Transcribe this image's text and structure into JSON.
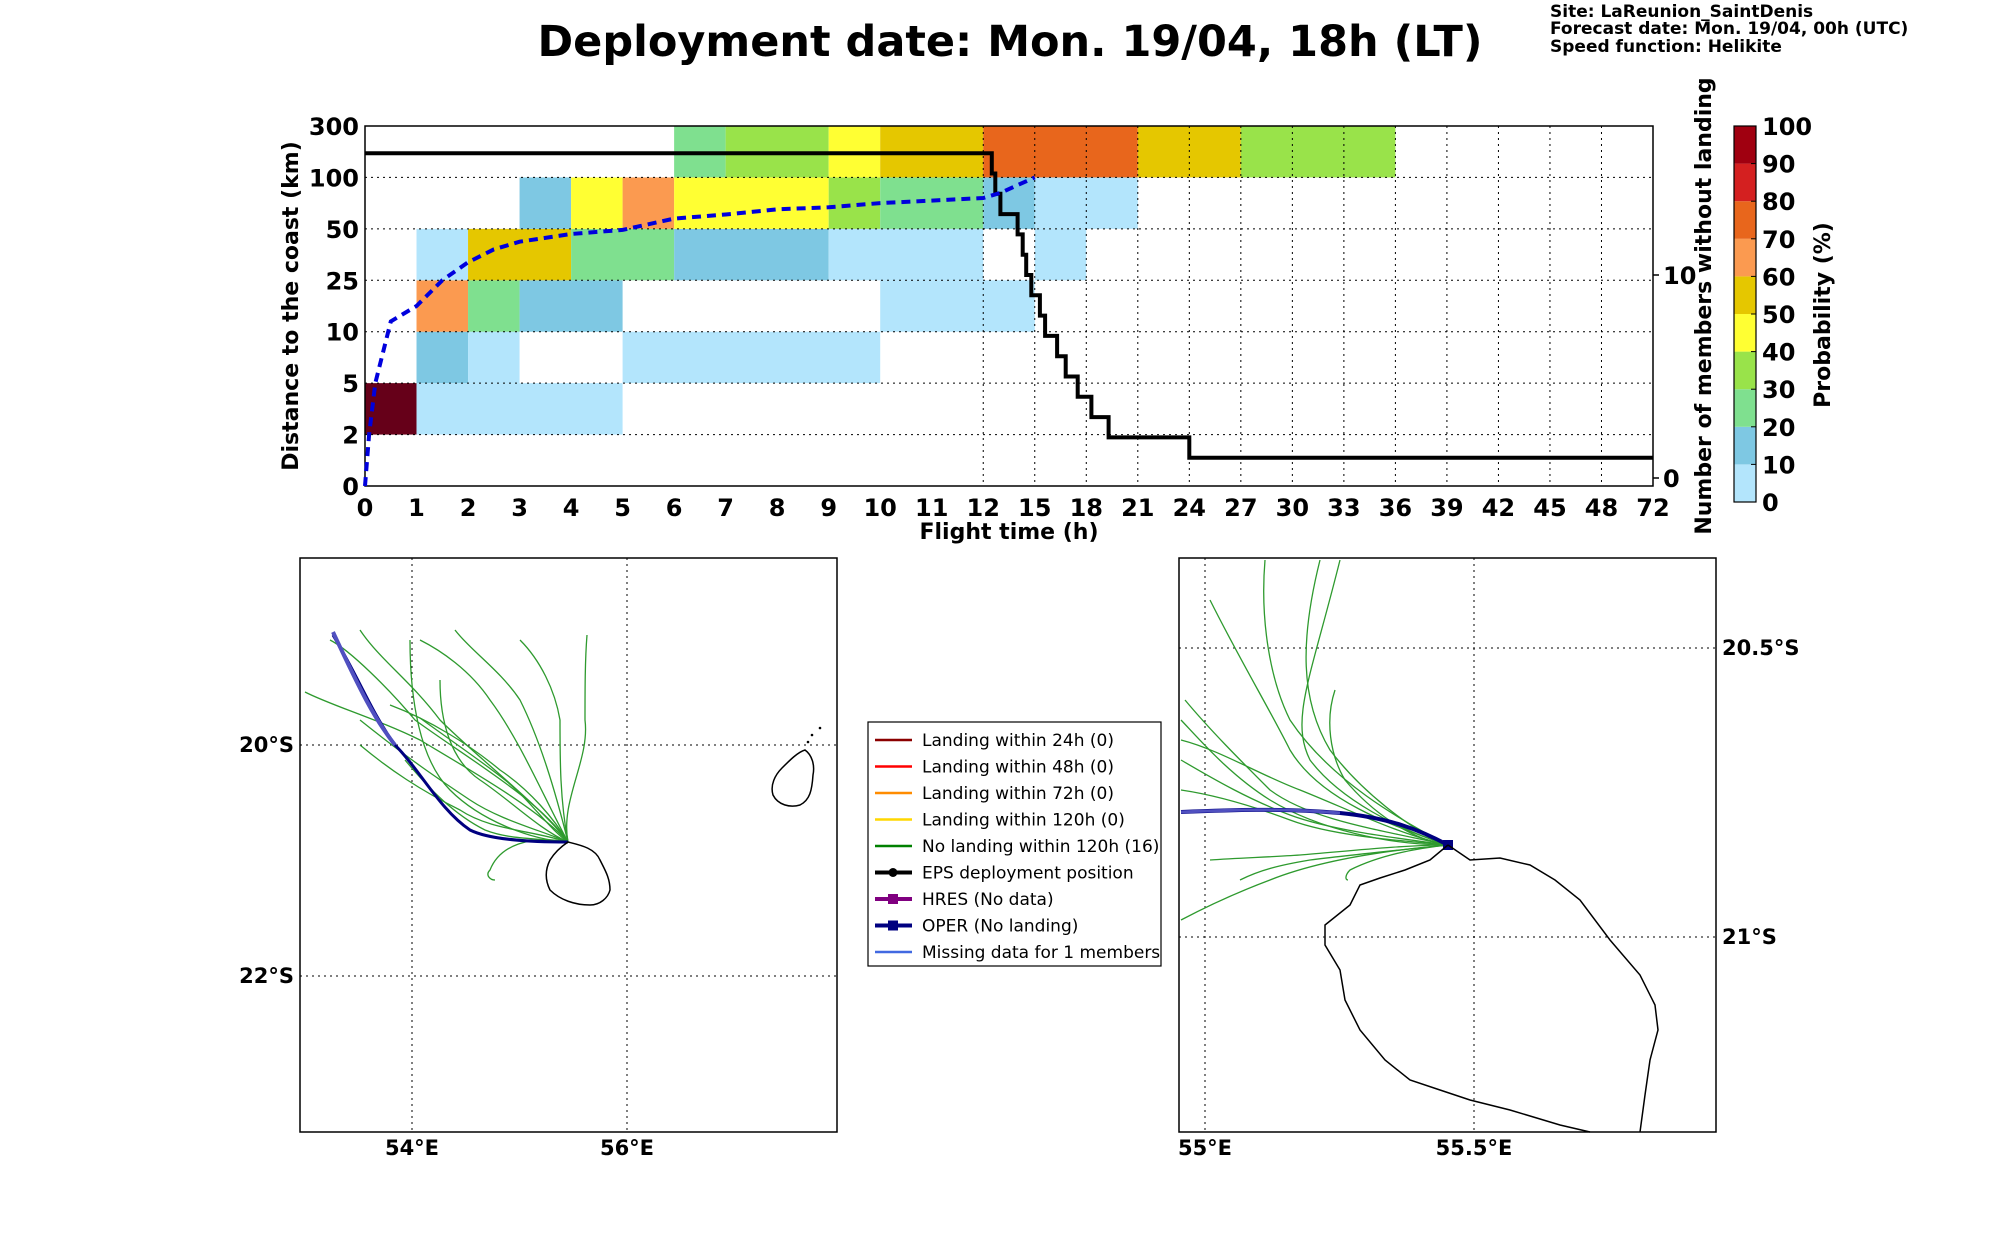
{
  "header": {
    "title": "Deployment date: Mon. 19/04, 18h (LT)",
    "info": [
      "Site: LaReunion_SaintDenis",
      "Forecast date: Mon. 19/04, 00h (UTC)",
      "Speed function: Helikite"
    ]
  },
  "chart_data": [
    {
      "type": "heatmap",
      "xlabel": "Flight time (h)",
      "ylabel": "Distance to the coast (km)",
      "y2label": "Number of members without landing",
      "x_ticks": [
        "0",
        "1",
        "2",
        "3",
        "4",
        "5",
        "6",
        "7",
        "8",
        "9",
        "10",
        "11",
        "12",
        "15",
        "18",
        "21",
        "24",
        "27",
        "30",
        "33",
        "36",
        "39",
        "42",
        "45",
        "48",
        "72"
      ],
      "y_ticks": [
        "0",
        "2",
        "5",
        "10",
        "25",
        "50",
        "100",
        "300"
      ],
      "y2_ticks": [
        "0",
        "10"
      ],
      "colorbar": {
        "label": "Probability (%)",
        "ticks": [
          "0",
          "10",
          "20",
          "30",
          "40",
          "50",
          "60",
          "70",
          "80",
          "90",
          "100"
        ],
        "colors": [
          "#b3e5fc",
          "#7ec8e3",
          "#7fe08f",
          "#99e34a",
          "#ffff33",
          "#e5c700",
          "#fb9a50",
          "#e8661c",
          "#d42020",
          "#a00010"
        ]
      },
      "cells": [
        {
          "x": 0,
          "w": 1,
          "y": 1,
          "h": 1,
          "c": "#660019"
        },
        {
          "x": 1,
          "w": 4,
          "y": 1,
          "h": 1,
          "c": "#b3e5fc"
        },
        {
          "x": 1,
          "w": 1,
          "y": 2,
          "h": 1,
          "c": "#7ec8e3"
        },
        {
          "x": 2,
          "w": 1,
          "y": 2,
          "h": 1,
          "c": "#b3e5fc"
        },
        {
          "x": 5,
          "w": 5,
          "y": 2,
          "h": 1,
          "c": "#b3e5fc"
        },
        {
          "x": 1,
          "w": 1,
          "y": 3,
          "h": 1,
          "c": "#fb9a50"
        },
        {
          "x": 2,
          "w": 1,
          "y": 3,
          "h": 1,
          "c": "#7fe08f"
        },
        {
          "x": 3,
          "w": 2,
          "y": 3,
          "h": 1,
          "c": "#7ec8e3"
        },
        {
          "x": 10,
          "w": 3,
          "y": 3,
          "h": 1,
          "c": "#b3e5fc"
        },
        {
          "x": 1,
          "w": 1,
          "y": 4,
          "h": 1,
          "c": "#b3e5fc"
        },
        {
          "x": 2,
          "w": 2,
          "y": 4,
          "h": 1,
          "c": "#e5c700"
        },
        {
          "x": 4,
          "w": 2,
          "y": 4,
          "h": 1,
          "c": "#7fe08f"
        },
        {
          "x": 6,
          "w": 3,
          "y": 4,
          "h": 1,
          "c": "#7ec8e3"
        },
        {
          "x": 9,
          "w": 3,
          "y": 4,
          "h": 1,
          "c": "#b3e5fc"
        },
        {
          "x": 13,
          "w": 1,
          "y": 4,
          "h": 1,
          "c": "#b3e5fc"
        },
        {
          "x": 3,
          "w": 1,
          "y": 5,
          "h": 1,
          "c": "#7ec8e3"
        },
        {
          "x": 4,
          "w": 1,
          "y": 5,
          "h": 1,
          "c": "#ffff33"
        },
        {
          "x": 5,
          "w": 1,
          "y": 5,
          "h": 1,
          "c": "#fb9a50"
        },
        {
          "x": 6,
          "w": 3,
          "y": 5,
          "h": 1,
          "c": "#ffff33"
        },
        {
          "x": 9,
          "w": 1,
          "y": 5,
          "h": 1,
          "c": "#99e34a"
        },
        {
          "x": 10,
          "w": 2,
          "y": 5,
          "h": 1,
          "c": "#7fe08f"
        },
        {
          "x": 12,
          "w": 1,
          "y": 5,
          "h": 1,
          "c": "#7ec8e3"
        },
        {
          "x": 13,
          "w": 2,
          "y": 5,
          "h": 1,
          "c": "#b3e5fc"
        },
        {
          "x": 6,
          "w": 1,
          "y": 6,
          "h": 1,
          "c": "#7fe08f"
        },
        {
          "x": 7,
          "w": 2,
          "y": 6,
          "h": 1,
          "c": "#99e34a"
        },
        {
          "x": 9,
          "w": 1,
          "y": 6,
          "h": 1,
          "c": "#ffff33"
        },
        {
          "x": 10,
          "w": 2,
          "y": 6,
          "h": 1,
          "c": "#e5c700"
        },
        {
          "x": 12,
          "w": 3,
          "y": 6,
          "h": 1,
          "c": "#e8661c"
        },
        {
          "x": 15,
          "w": 2,
          "y": 6,
          "h": 1,
          "c": "#e5c700"
        },
        {
          "x": 17,
          "w": 3,
          "y": 6,
          "h": 1,
          "c": "#99e34a"
        }
      ],
      "members_without_landing": [
        [
          0,
          16
        ],
        [
          12.5,
          16
        ],
        [
          12.5,
          15
        ],
        [
          12.7,
          15
        ],
        [
          12.7,
          14
        ],
        [
          13,
          14
        ],
        [
          13,
          13
        ],
        [
          14,
          13
        ],
        [
          14,
          12
        ],
        [
          14.3,
          12
        ],
        [
          14.3,
          11
        ],
        [
          14.5,
          11
        ],
        [
          14.5,
          10
        ],
        [
          14.8,
          10
        ],
        [
          14.8,
          9
        ],
        [
          15.3,
          9
        ],
        [
          15.3,
          8
        ],
        [
          15.6,
          8
        ],
        [
          15.6,
          7
        ],
        [
          16.3,
          7
        ],
        [
          16.3,
          6
        ],
        [
          16.8,
          6
        ],
        [
          16.8,
          5
        ],
        [
          17.5,
          5
        ],
        [
          17.5,
          4
        ],
        [
          18.3,
          4
        ],
        [
          18.3,
          3
        ],
        [
          19.3,
          3
        ],
        [
          19.3,
          2
        ],
        [
          24,
          2
        ],
        [
          24,
          1
        ],
        [
          26,
          1
        ]
      ],
      "mean_distance_curve": [
        [
          0,
          0
        ],
        [
          0.08,
          1
        ],
        [
          0.2,
          2
        ],
        [
          0.5,
          3.2
        ],
        [
          1,
          3.5
        ],
        [
          1.5,
          4
        ],
        [
          2,
          4.35
        ],
        [
          2.5,
          4.6
        ],
        [
          3,
          4.75
        ],
        [
          4,
          4.9
        ],
        [
          5,
          4.98
        ],
        [
          6,
          5.2
        ],
        [
          7,
          5.28
        ],
        [
          8,
          5.38
        ],
        [
          9,
          5.42
        ],
        [
          10,
          5.5
        ],
        [
          11,
          5.55
        ],
        [
          12,
          5.6
        ],
        [
          13,
          5.7
        ],
        [
          14,
          5.85
        ],
        [
          15,
          6
        ]
      ]
    },
    {
      "type": "map",
      "lon_ticks": [
        "54°E",
        "56°E"
      ],
      "lat_ticks": [
        "20°S",
        "22°S"
      ]
    },
    {
      "type": "map",
      "lon_ticks": [
        "55°E",
        "55.5°E"
      ],
      "lat_ticks": [
        "20.5°S",
        "21°S"
      ]
    }
  ],
  "legend": [
    {
      "label": "Landing within 24h (0)",
      "color": "#8b0000",
      "marker": "none"
    },
    {
      "label": "Landing within 48h (0)",
      "color": "#ff0000",
      "marker": "none"
    },
    {
      "label": "Landing within 72h (0)",
      "color": "#ff8c00",
      "marker": "none"
    },
    {
      "label": "Landing within 120h (0)",
      "color": "#ffd700",
      "marker": "none"
    },
    {
      "label": "No landing within 120h (16)",
      "color": "#008000",
      "marker": "none"
    },
    {
      "label": "EPS deployment position",
      "color": "#000000",
      "marker": "dot"
    },
    {
      "label": "HRES (No data)",
      "color": "#800080",
      "marker": "square"
    },
    {
      "label": "OPER (No landing)",
      "color": "#000080",
      "marker": "square"
    },
    {
      "label": "Missing data for 1 members",
      "color": "#4169e1",
      "marker": "none"
    }
  ],
  "colors": {
    "members_line": "#000000",
    "mean_curve": "#0000dd",
    "eps_tracks": "#2e9a2e",
    "oper_track": "#000080",
    "missing_track": "#5050c0"
  }
}
